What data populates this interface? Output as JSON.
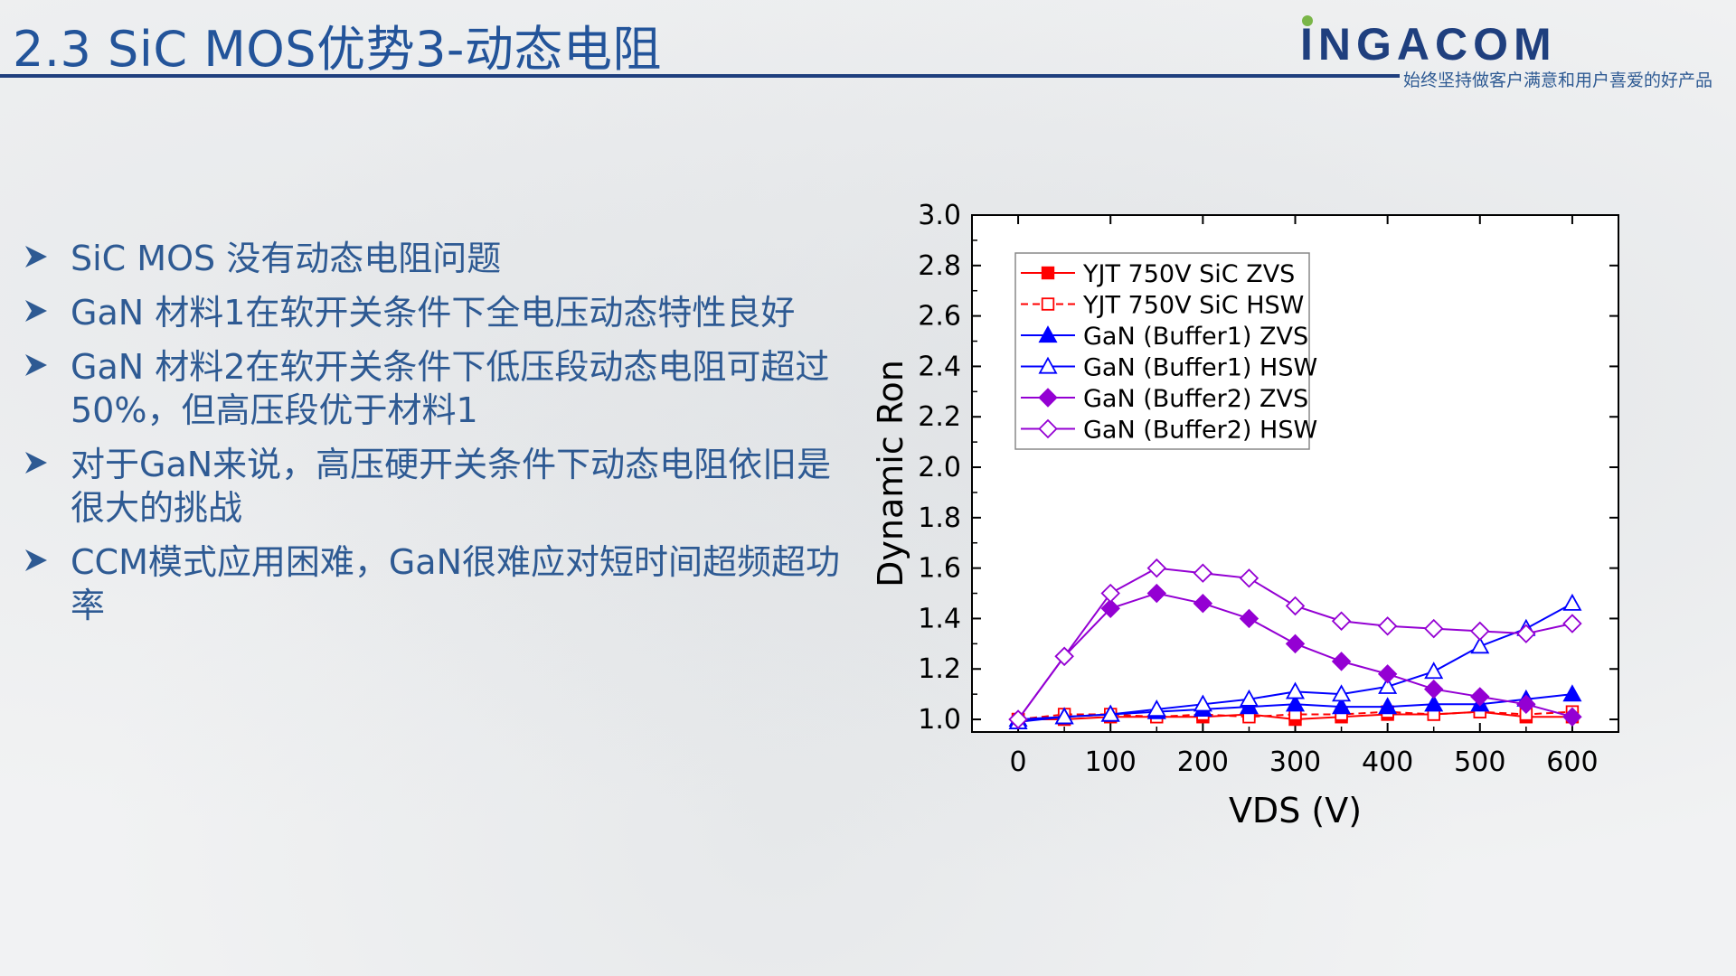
{
  "slide": {
    "title": "2.3 SiC MOS优势3-动态电阻",
    "brand": "INGACOM",
    "tagline": "始终坚持做客户满意和用户喜爱的好产品"
  },
  "bullets": [
    {
      "text": "SiC MOS 没有动态电阻问题"
    },
    {
      "text": "GaN 材料1在软开关条件下全电压动态特性良好"
    },
    {
      "text": "GaN 材料2在软开关条件下低压段动态电阻可超过50%，但高压段优于材料1"
    },
    {
      "text": "对于GaN来说，高压硬开关条件下动态电阻依旧是很大的挑战"
    },
    {
      "text": "CCM模式应用困难，GaN很难应对短时间超频超功率"
    }
  ],
  "colors": {
    "title": "#23549a",
    "rule": "#1f3f7e",
    "brand": "#1f3f7e",
    "brand_dot": "#7ab648"
  },
  "chart_data": {
    "type": "line",
    "xlabel": "VDS (V)",
    "ylabel": "Dynamic Ron",
    "xlim": [
      -50,
      650
    ],
    "ylim": [
      0.95,
      3.0
    ],
    "xticks": [
      0,
      100,
      200,
      300,
      400,
      500,
      600
    ],
    "yticks": [
      1.0,
      1.2,
      1.4,
      1.6,
      1.8,
      2.0,
      2.2,
      2.4,
      2.6,
      2.8,
      3.0
    ],
    "legend_position": "top-left",
    "series": [
      {
        "name": "YJT 750V SiC ZVS",
        "color": "#ff0000",
        "marker": "square",
        "filled": true,
        "dashed": false,
        "x": [
          0,
          50,
          100,
          150,
          200,
          250,
          300,
          350,
          400,
          450,
          500,
          550,
          600
        ],
        "y": [
          1.0,
          1.0,
          1.01,
          1.01,
          1.01,
          1.02,
          1.0,
          1.01,
          1.02,
          1.02,
          1.03,
          1.01,
          1.01
        ]
      },
      {
        "name": "YJT 750V SiC HSW",
        "color": "#ff0000",
        "marker": "square",
        "filled": false,
        "dashed": true,
        "x": [
          0,
          50,
          100,
          150,
          200,
          250,
          300,
          350,
          400,
          450,
          500,
          550,
          600
        ],
        "y": [
          1.0,
          1.02,
          1.02,
          1.01,
          1.02,
          1.01,
          1.02,
          1.02,
          1.03,
          1.02,
          1.03,
          1.02,
          1.03
        ]
      },
      {
        "name": "GaN (Buffer1) ZVS",
        "color": "#0000ff",
        "marker": "triangle",
        "filled": true,
        "dashed": false,
        "x": [
          0,
          50,
          100,
          150,
          200,
          250,
          300,
          350,
          400,
          450,
          500,
          550,
          600
        ],
        "y": [
          1.0,
          1.01,
          1.02,
          1.03,
          1.04,
          1.05,
          1.06,
          1.05,
          1.05,
          1.06,
          1.06,
          1.08,
          1.1
        ]
      },
      {
        "name": "GaN (Buffer1) HSW",
        "color": "#0000ff",
        "marker": "triangle",
        "filled": false,
        "dashed": false,
        "x": [
          0,
          50,
          100,
          150,
          200,
          250,
          300,
          350,
          400,
          450,
          500,
          550,
          600
        ],
        "y": [
          0.99,
          1.01,
          1.02,
          1.04,
          1.06,
          1.08,
          1.11,
          1.1,
          1.13,
          1.19,
          1.29,
          1.36,
          1.46
        ]
      },
      {
        "name": "GaN (Buffer2) ZVS",
        "color": "#9400d3",
        "marker": "diamond",
        "filled": true,
        "dashed": false,
        "x": [
          0,
          50,
          100,
          150,
          200,
          250,
          300,
          350,
          400,
          450,
          500,
          550,
          600
        ],
        "y": [
          1.0,
          1.25,
          1.44,
          1.5,
          1.46,
          1.4,
          1.3,
          1.23,
          1.18,
          1.12,
          1.09,
          1.06,
          1.01
        ]
      },
      {
        "name": "GaN (Buffer2) HSW",
        "color": "#9400d3",
        "marker": "diamond",
        "filled": false,
        "dashed": false,
        "x": [
          0,
          50,
          100,
          150,
          200,
          250,
          300,
          350,
          400,
          450,
          500,
          550,
          600
        ],
        "y": [
          1.0,
          1.25,
          1.5,
          1.6,
          1.58,
          1.56,
          1.45,
          1.39,
          1.37,
          1.36,
          1.35,
          1.34,
          1.38
        ]
      }
    ]
  }
}
